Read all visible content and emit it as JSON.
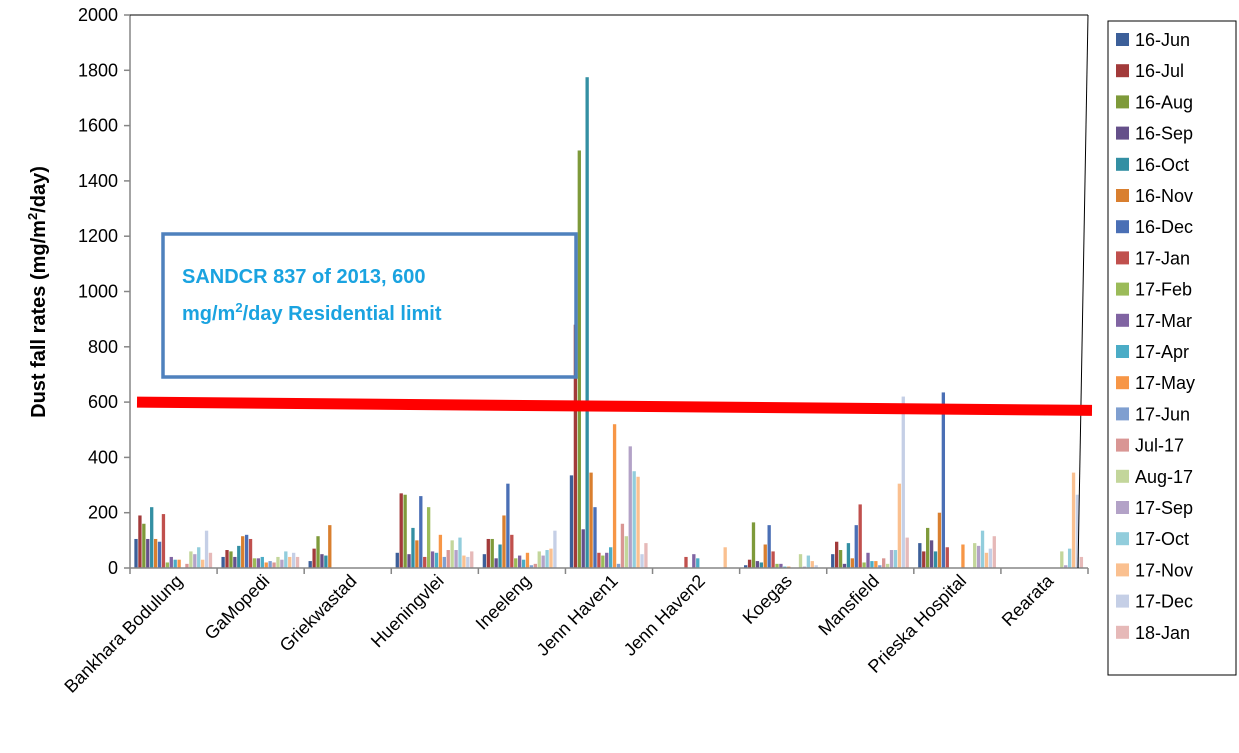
{
  "chart_data": {
    "type": "bar",
    "ylabel": "Dust fall  rates  (mg/m²/day)",
    "ylabel_parts": [
      "Dust fall  rates  (mg/m",
      "2",
      "/day)"
    ],
    "ylim": [
      0,
      2000
    ],
    "yticks": [
      "0",
      "200",
      "400",
      "600",
      "800",
      "1000",
      "1200",
      "1400",
      "1600",
      "1800",
      "2000"
    ],
    "grid": false,
    "legend_placement": "right",
    "categories": [
      "Bankhara Bodulung",
      "GaMopedi",
      "Griekwastad",
      "Hueningvlei",
      "Ineeleng",
      "Jenn Haven1",
      "Jenn Haven2",
      "Koegas",
      "Mansfield",
      "Prieska Hospital",
      "Rearata"
    ],
    "series": [
      {
        "name": "16-Jun",
        "color": "#3c5f99",
        "values": [
          105,
          40,
          25,
          55,
          50,
          335,
          0,
          10,
          50,
          90,
          0
        ]
      },
      {
        "name": "16-Jul",
        "color": "#a23a3a",
        "values": [
          190,
          65,
          70,
          270,
          105,
          880,
          0,
          30,
          95,
          60,
          0
        ]
      },
      {
        "name": "16-Aug",
        "color": "#7e9a3a",
        "values": [
          160,
          60,
          115,
          265,
          105,
          1510,
          0,
          165,
          65,
          145,
          0
        ]
      },
      {
        "name": "16-Sep",
        "color": "#65508a",
        "values": [
          105,
          40,
          50,
          50,
          35,
          140,
          0,
          25,
          15,
          100,
          0
        ]
      },
      {
        "name": "16-Oct",
        "color": "#338fa3",
        "values": [
          220,
          80,
          45,
          145,
          85,
          1775,
          0,
          20,
          90,
          60,
          0
        ]
      },
      {
        "name": "16-Nov",
        "color": "#d97f2f",
        "values": [
          105,
          115,
          155,
          100,
          190,
          345,
          0,
          85,
          35,
          200,
          0
        ]
      },
      {
        "name": "16-Dec",
        "color": "#4a6fb5",
        "values": [
          95,
          120,
          0,
          260,
          305,
          220,
          0,
          155,
          155,
          635,
          0
        ]
      },
      {
        "name": "17-Jan",
        "color": "#c0504d",
        "values": [
          195,
          105,
          0,
          40,
          120,
          55,
          40,
          60,
          230,
          75,
          0
        ]
      },
      {
        "name": "17-Feb",
        "color": "#9bbb59",
        "values": [
          20,
          35,
          0,
          220,
          35,
          45,
          0,
          15,
          20,
          0,
          0
        ]
      },
      {
        "name": "17-Mar",
        "color": "#8064a2",
        "values": [
          40,
          35,
          0,
          60,
          45,
          55,
          50,
          15,
          55,
          0,
          0
        ]
      },
      {
        "name": "17-Apr",
        "color": "#4bacc6",
        "values": [
          30,
          40,
          0,
          55,
          30,
          75,
          35,
          5,
          25,
          0,
          0
        ]
      },
      {
        "name": "17-May",
        "color": "#f79646",
        "values": [
          30,
          20,
          0,
          120,
          55,
          520,
          0,
          5,
          25,
          85,
          0
        ]
      },
      {
        "name": "17-Jun",
        "color": "#7f9fd0",
        "values": [
          0,
          25,
          0,
          40,
          10,
          15,
          0,
          0,
          10,
          0,
          0
        ]
      },
      {
        "name": "Jul-17",
        "color": "#d99694",
        "values": [
          15,
          20,
          0,
          65,
          15,
          160,
          0,
          0,
          35,
          0,
          0
        ]
      },
      {
        "name": "Aug-17",
        "color": "#c3d69b",
        "values": [
          60,
          40,
          0,
          100,
          60,
          115,
          0,
          50,
          15,
          90,
          60
        ]
      },
      {
        "name": "17-Sep",
        "color": "#b3a2c7",
        "values": [
          50,
          30,
          0,
          65,
          45,
          440,
          0,
          5,
          65,
          80,
          10
        ]
      },
      {
        "name": "17-Oct",
        "color": "#92cddc",
        "values": [
          75,
          60,
          0,
          110,
          65,
          350,
          0,
          45,
          65,
          135,
          70
        ]
      },
      {
        "name": "17-Nov",
        "color": "#fac090",
        "values": [
          30,
          40,
          0,
          45,
          70,
          330,
          75,
          25,
          305,
          55,
          345
        ]
      },
      {
        "name": "17-Dec",
        "color": "#c5cfe6",
        "values": [
          135,
          55,
          0,
          40,
          135,
          50,
          0,
          10,
          620,
          70,
          265
        ]
      },
      {
        "name": "18-Jan",
        "color": "#e6b9b8",
        "values": [
          55,
          40,
          0,
          60,
          0,
          90,
          0,
          0,
          110,
          115,
          40
        ]
      }
    ],
    "limit_line": {
      "start": 600,
      "end": 570,
      "color": "#ff0000"
    },
    "annotation": {
      "line1": "SANDCR  837 of 2013, 600",
      "line2_pre": "mg/m",
      "line2_sup": "2",
      "line2_post": "/day Residential limit",
      "text_color": "#1aa3e0",
      "border_color": "#4f81bd"
    }
  }
}
